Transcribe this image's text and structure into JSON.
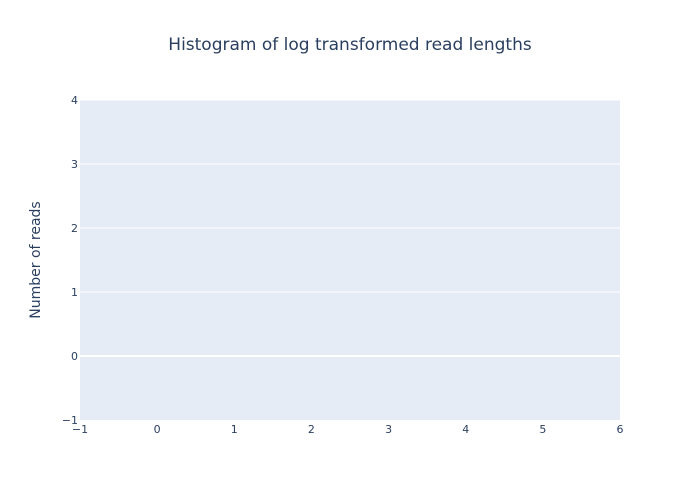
{
  "chart_data": {
    "type": "bar",
    "title": "Histogram of log transformed read lengths",
    "xlabel": "",
    "ylabel": "Number of reads",
    "x": [],
    "values": [],
    "xlim": [
      -1,
      6
    ],
    "ylim": [
      -1,
      4
    ],
    "xticks": [
      -1,
      0,
      1,
      2,
      3,
      4,
      5,
      6
    ],
    "yticks": [
      -1,
      0,
      1,
      2,
      3,
      4
    ],
    "xtick_labels": [
      "−1",
      "0",
      "1",
      "2",
      "3",
      "4",
      "5",
      "6"
    ],
    "ytick_labels": [
      "−1",
      "0",
      "1",
      "2",
      "3",
      "4"
    ],
    "grid": true,
    "legend": "none",
    "colors": {
      "plot_background": "#e5ecf6",
      "grid": "#ffffff",
      "text": "#2a3f5f",
      "bar": "#636efa"
    }
  }
}
